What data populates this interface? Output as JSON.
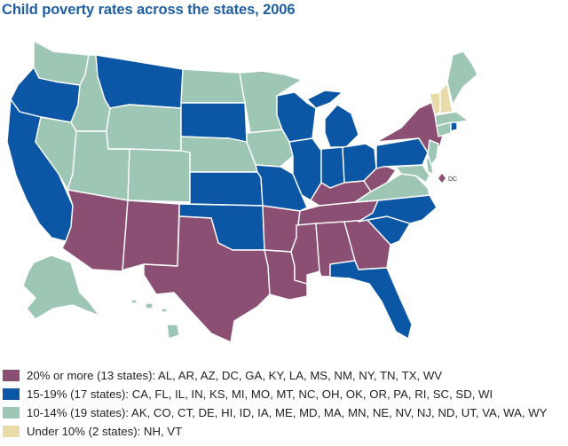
{
  "title": "Child poverty rates across the states, 2006",
  "colors": {
    "twenty_plus": "#8a4f72",
    "fifteen_nineteen": "#0b56a5",
    "ten_fourteen": "#9ec6b4",
    "under_ten": "#e9dba7",
    "border": "#ffffff"
  },
  "map": {
    "dc_label": "DC"
  },
  "legend": [
    {
      "text": "20% or more (13 states): AL, AR, AZ, DC, GA, KY, LA, MS, NM, NY, TN, TX, WV",
      "color": "#8a4f72"
    },
    {
      "text": "15-19% (17 states): CA, FL, IL, IN, KS, MI, MO, MT, NC, OH, OK, OR, PA, RI, SC, SD, WI",
      "color": "#0b56a5"
    },
    {
      "text": "10-14% (19 states): AK, CO, CT, DE, HI, ID, IA, ME, MD, MA, MN, NE, NV, NJ, ND, UT, VA, WA, WY",
      "color": "#9ec6b4"
    },
    {
      "text": "Under 10% (2 states): NH, VT",
      "color": "#e9dba7"
    }
  ]
}
